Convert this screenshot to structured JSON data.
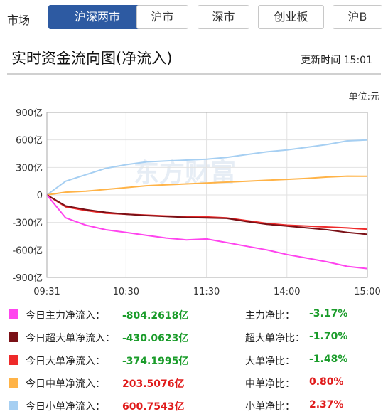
{
  "market": {
    "label": "市场",
    "tabs": [
      {
        "label": "沪深两市",
        "active": true
      },
      {
        "label": "沪市",
        "active": false
      },
      {
        "label": "深市",
        "active": false
      },
      {
        "label": "创业板",
        "active": false
      },
      {
        "label": "沪B",
        "active": false
      }
    ]
  },
  "title": "实时资金流向图(净流入)",
  "update_time": "更新时间 15:01",
  "unit": "单位:元",
  "watermark": "东方财富",
  "colors": {
    "main": "#ff44ee",
    "super": "#7a1016",
    "large": "#ee2a2a",
    "medium": "#ffb347",
    "small": "#a6cff2",
    "accent": "#2d5aa2",
    "negative": "#1a9c2a",
    "positive": "#e01b1b"
  },
  "chart_data": {
    "type": "line",
    "x_ticks": [
      "09:31",
      "10:30",
      "11:30",
      "14:00",
      "15:00"
    ],
    "y_ticks": [
      "900亿",
      "600亿",
      "300亿",
      "0",
      "-300亿",
      "-600亿",
      "-900亿"
    ],
    "ylim": [
      -900,
      900
    ],
    "y_unit": "亿",
    "sample_times": [
      "09:31",
      "09:45",
      "10:00",
      "10:15",
      "10:30",
      "10:45",
      "11:00",
      "11:15",
      "11:30",
      "13:15",
      "13:30",
      "13:45",
      "14:00",
      "14:15",
      "14:30",
      "14:45",
      "15:00"
    ],
    "series": [
      {
        "name": "今日小单净流入",
        "color": "#a6cff2",
        "values": [
          0,
          150,
          220,
          290,
          330,
          360,
          370,
          380,
          390,
          410,
          440,
          470,
          490,
          520,
          550,
          590,
          600
        ]
      },
      {
        "name": "今日中单净流入",
        "color": "#ffb347",
        "values": [
          0,
          30,
          40,
          60,
          80,
          100,
          110,
          120,
          130,
          140,
          150,
          160,
          170,
          180,
          195,
          205,
          203
        ]
      },
      {
        "name": "今日大单净流入",
        "color": "#ee2a2a",
        "values": [
          0,
          -130,
          -170,
          -200,
          -210,
          -220,
          -230,
          -235,
          -240,
          -250,
          -280,
          -310,
          -330,
          -340,
          -350,
          -360,
          -374
        ]
      },
      {
        "name": "今日超大单净流入",
        "color": "#7a1016",
        "values": [
          0,
          -120,
          -160,
          -190,
          -210,
          -225,
          -235,
          -245,
          -250,
          -255,
          -290,
          -320,
          -340,
          -360,
          -380,
          -410,
          -430
        ]
      },
      {
        "name": "今日主力净流入",
        "color": "#ff44ee",
        "values": [
          0,
          -250,
          -330,
          -380,
          -410,
          -440,
          -470,
          -490,
          -480,
          -520,
          -560,
          -600,
          -650,
          -690,
          -730,
          -780,
          -804
        ]
      }
    ]
  },
  "legend": [
    {
      "label": "今日主力净流入：",
      "value": "-804.2618亿",
      "ratio_label": "主力净比：",
      "ratio": "-3.17%",
      "color": "#ff44ee",
      "sign": "neg"
    },
    {
      "label": "今日超大单净流入：",
      "value": "-430.0623亿",
      "ratio_label": "超大单净比：",
      "ratio": "-1.70%",
      "color": "#7a1016",
      "sign": "neg"
    },
    {
      "label": "今日大单净流入：",
      "value": "-374.1995亿",
      "ratio_label": "大单净比：",
      "ratio": "-1.48%",
      "color": "#ee2a2a",
      "sign": "neg"
    },
    {
      "label": "今日中单净流入：",
      "value": "203.5076亿",
      "ratio_label": "中单净比：",
      "ratio": "0.80%",
      "color": "#ffb347",
      "sign": "pos"
    },
    {
      "label": "今日小单净流入：",
      "value": "600.7543亿",
      "ratio_label": "小单净比：",
      "ratio": "2.37%",
      "color": "#a6cff2",
      "sign": "pos"
    }
  ]
}
